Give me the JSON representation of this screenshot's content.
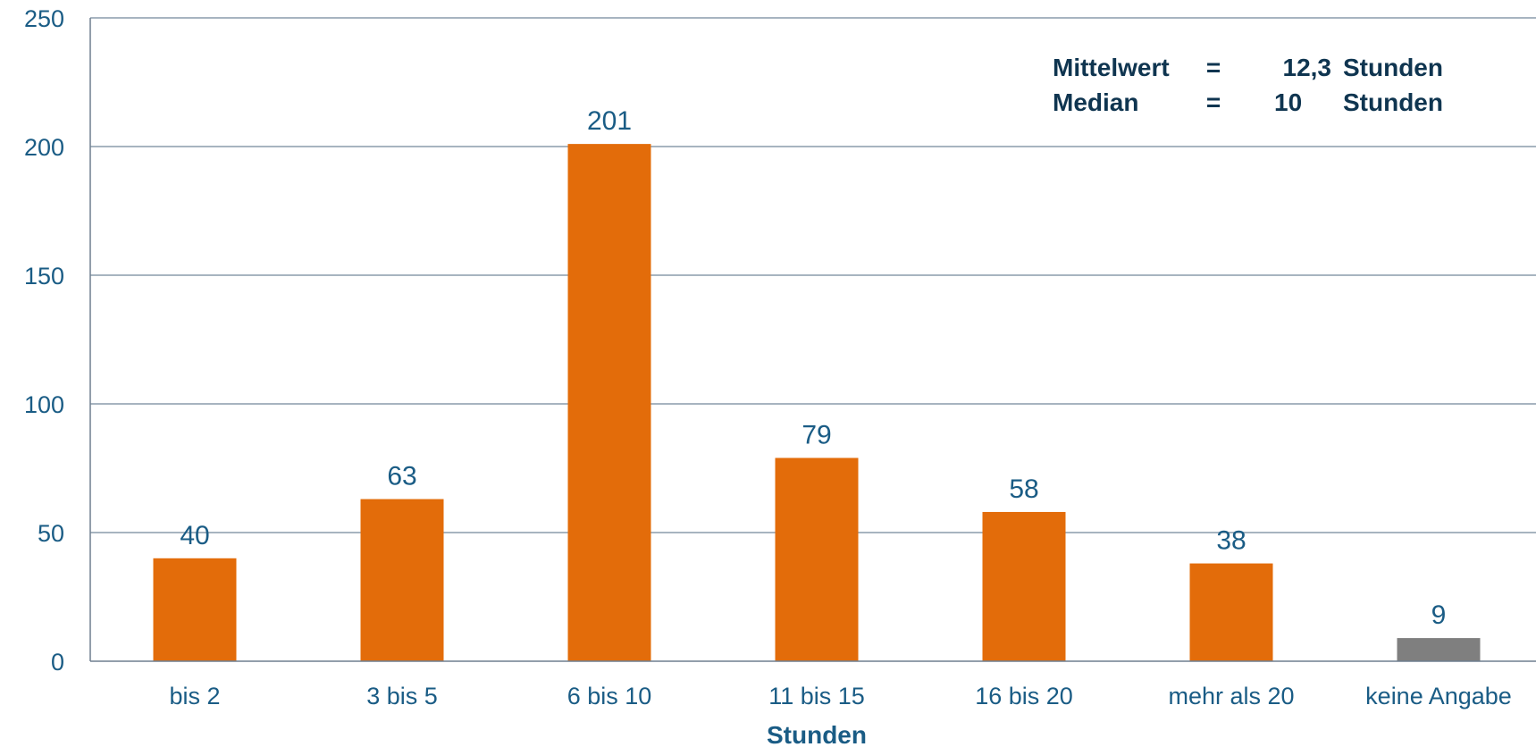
{
  "chart_data": {
    "type": "bar",
    "categories": [
      "bis 2",
      "3 bis 5",
      "6 bis 10",
      "11 bis 15",
      "16 bis 20",
      "mehr als 20",
      "keine Angabe"
    ],
    "values": [
      40,
      63,
      201,
      79,
      58,
      38,
      9
    ],
    "bar_colors": [
      "#e36c0a",
      "#e36c0a",
      "#e36c0a",
      "#e36c0a",
      "#e36c0a",
      "#e36c0a",
      "#7f7f7f"
    ],
    "xlabel": "Stunden",
    "ylabel": "",
    "ylim": [
      0,
      250
    ],
    "yticks": [
      "0",
      "50",
      "100",
      "150",
      "200",
      "250"
    ],
    "grid": true,
    "annotations": [
      {
        "label": "Mittelwert",
        "eq": "=",
        "value": "12,3",
        "unit": "Stunden"
      },
      {
        "label": "Median",
        "eq": "=",
        "value": "10",
        "unit": "Stunden"
      }
    ]
  },
  "colors": {
    "gridline": "#8a9bab",
    "axis": "#6f7f8f",
    "text": "#1a5c85",
    "stats": "#0f3550"
  }
}
